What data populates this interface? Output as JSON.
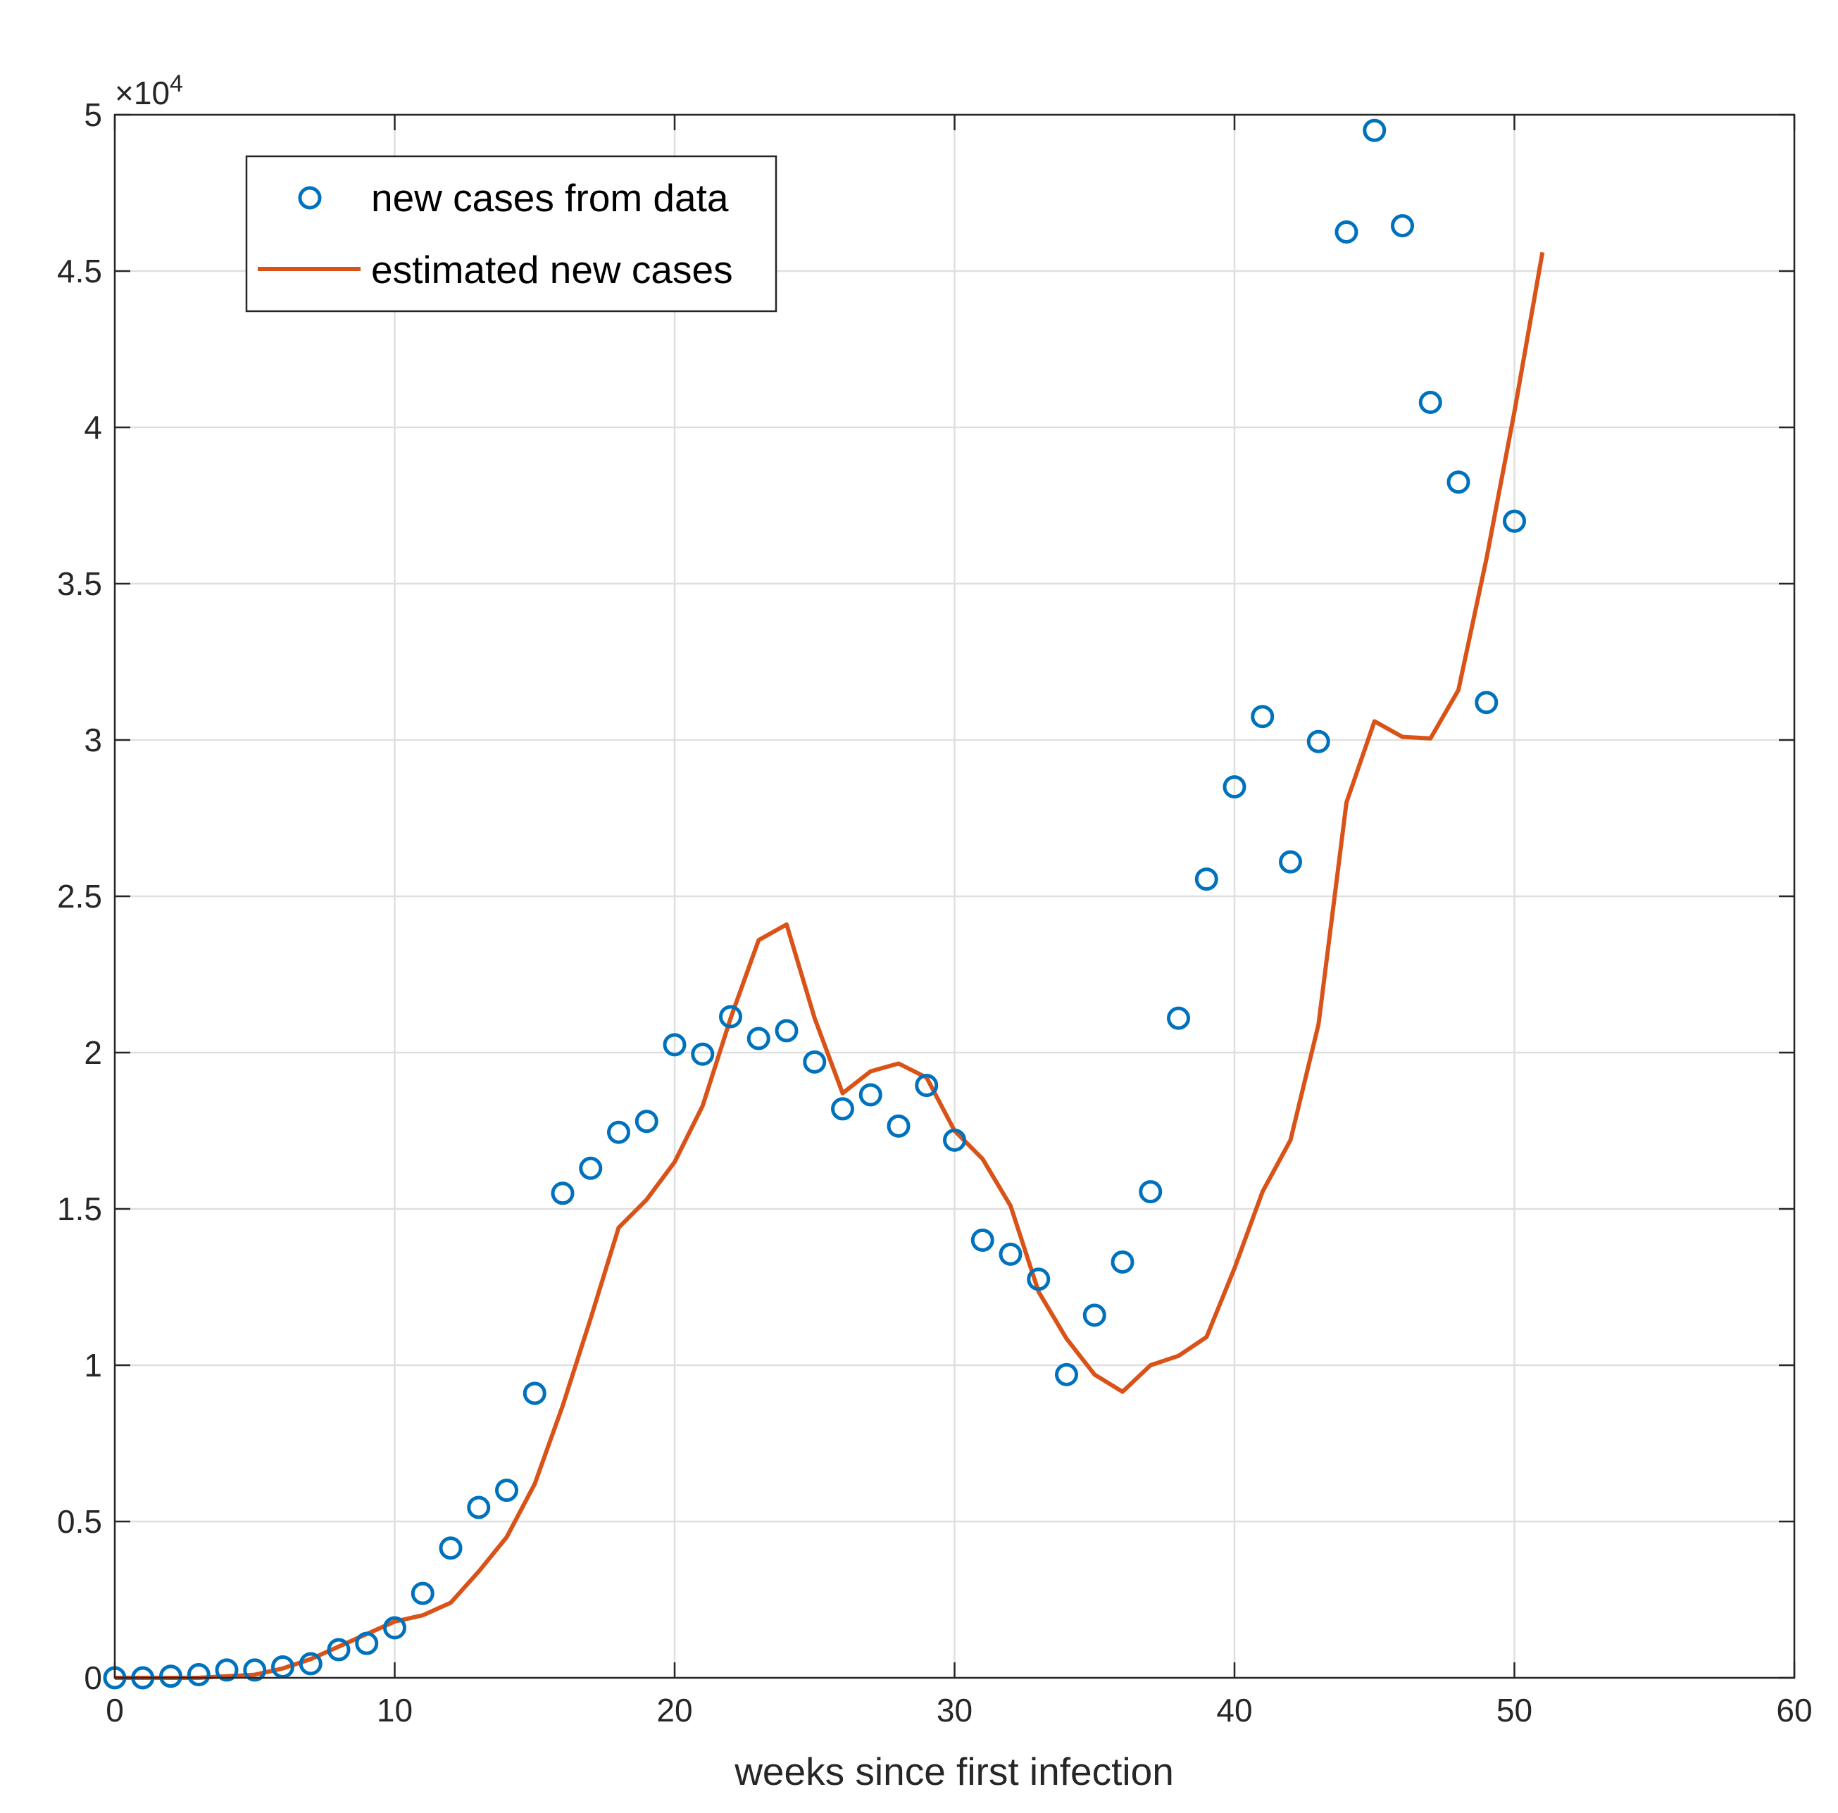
{
  "chart_data": {
    "type": "line",
    "title": "",
    "xlabel": "weeks since first infection",
    "ylabel": "",
    "xlim": [
      0,
      60
    ],
    "ylim": [
      0,
      50000
    ],
    "xticks": [
      0,
      10,
      20,
      30,
      40,
      50,
      60
    ],
    "yticks": [
      0,
      5000,
      10000,
      15000,
      20000,
      25000,
      30000,
      35000,
      40000,
      45000,
      50000
    ],
    "ytick_labels": [
      "0",
      "0.5",
      "1",
      "1.5",
      "2",
      "2.5",
      "3",
      "3.5",
      "4",
      "4.5",
      "5"
    ],
    "y_exponent": {
      "base": "×10",
      "power": "4"
    },
    "grid": true,
    "legend_position": "top-left",
    "colors": {
      "data": "#0072BD",
      "estimate": "#D95319",
      "grid": "#dfdfdf",
      "axis": "#262626"
    },
    "series": [
      {
        "name": "new cases from data",
        "style": "markers-circle",
        "x": [
          0,
          1,
          2,
          3,
          4,
          5,
          6,
          7,
          8,
          9,
          10,
          11,
          12,
          13,
          14,
          15,
          16,
          17,
          18,
          19,
          20,
          21,
          22,
          23,
          24,
          25,
          26,
          27,
          28,
          29,
          30,
          31,
          32,
          33,
          34,
          35,
          36,
          37,
          38,
          39,
          40,
          41,
          42,
          43,
          44,
          45,
          46,
          47,
          48,
          49,
          50
        ],
        "values": [
          0,
          0,
          50,
          100,
          250,
          250,
          350,
          450,
          900,
          1100,
          1600,
          2700,
          4150,
          5450,
          6000,
          9100,
          15500,
          16300,
          17450,
          17800,
          20250,
          19950,
          21150,
          20450,
          20700,
          19700,
          18200,
          18650,
          17650,
          18950,
          17200,
          14000,
          13550,
          12750,
          9700,
          11600,
          13300,
          15550,
          21100,
          25550,
          28500,
          30750,
          26100,
          29950,
          46250,
          49500,
          46450,
          40800,
          38250,
          31200,
          37000
        ]
      },
      {
        "name": "estimated new cases",
        "style": "line",
        "x": [
          0,
          1,
          2,
          3,
          4,
          5,
          6,
          7,
          8,
          9,
          10,
          11,
          12,
          13,
          14,
          15,
          16,
          17,
          18,
          19,
          20,
          21,
          22,
          23,
          24,
          25,
          26,
          27,
          28,
          29,
          30,
          31,
          32,
          33,
          34,
          35,
          36,
          37,
          38,
          39,
          40,
          41,
          42,
          43,
          44,
          45,
          46,
          47,
          48,
          49,
          50,
          51
        ],
        "values": [
          0,
          0,
          0,
          0,
          50,
          100,
          300,
          600,
          1000,
          1400,
          1800,
          2000,
          2400,
          3400,
          4500,
          6200,
          8700,
          11500,
          14400,
          15300,
          16500,
          18300,
          21100,
          23600,
          24100,
          21100,
          18700,
          19400,
          19650,
          19200,
          17500,
          16600,
          15100,
          12350,
          10850,
          9700,
          9150,
          10000,
          10300,
          10900,
          13100,
          15550,
          17200,
          20900,
          28000,
          30600,
          30100,
          30050,
          31600,
          35800,
          40500,
          45600
        ]
      }
    ]
  }
}
